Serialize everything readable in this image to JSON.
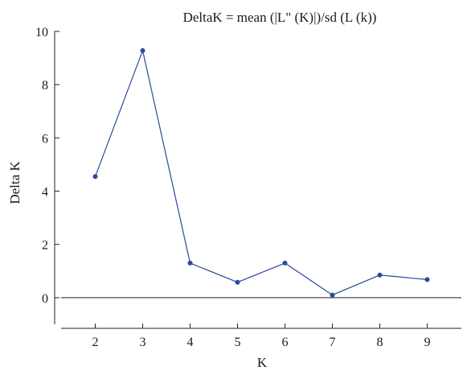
{
  "chart_data": {
    "type": "line",
    "title": "DeltaK = mean (|L\" (K)|)/sd (L (k))",
    "xlabel": "K",
    "ylabel": "Delta K",
    "x": [
      2,
      3,
      4,
      5,
      6,
      7,
      8,
      9
    ],
    "xlim": [
      1.5,
      9.5
    ],
    "ylim": [
      -1,
      10
    ],
    "yticks": [
      0,
      2,
      4,
      6,
      8,
      10
    ],
    "reference_line_y": 0,
    "grid": false,
    "color": "#2a4a9c",
    "series": [
      {
        "values": [
          4.55,
          9.28,
          1.3,
          0.58,
          1.3,
          0.1,
          0.85,
          0.68
        ]
      }
    ]
  }
}
